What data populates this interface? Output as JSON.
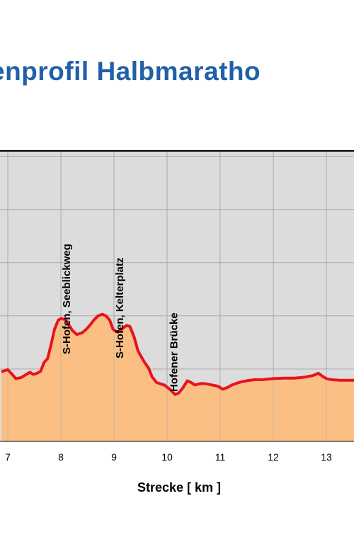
{
  "title": "enprofil Halbmaratho",
  "chart_data": {
    "type": "area",
    "title": "enprofil Halbmaratho",
    "xlabel": "Strecke [ km ]",
    "ylabel": "",
    "x_ticks": [
      7,
      8,
      9,
      10,
      11,
      12,
      13
    ],
    "xlim": [
      6.88,
      13.55
    ],
    "ylim": [
      0,
      5.1
    ],
    "grid": true,
    "colors": {
      "fill": "#fbbf84",
      "line": "#e8131f",
      "plot_bg": "#dcdcdc",
      "grid": "#aaaaaa",
      "title": "#2160a8"
    },
    "series": [
      {
        "x": [
          6.88,
          7.0,
          7.1,
          7.15,
          7.25,
          7.35,
          7.42,
          7.48,
          7.55,
          7.62,
          7.68,
          7.75,
          7.82,
          7.88,
          7.95,
          8.0,
          8.08,
          8.15,
          8.22,
          8.3,
          8.4,
          8.48,
          8.55,
          8.62,
          8.7,
          8.78,
          8.85,
          8.92,
          8.98,
          9.05,
          9.12,
          9.18,
          9.24,
          9.3,
          9.38,
          9.45,
          9.52,
          9.58,
          9.65,
          9.72,
          9.8,
          9.88,
          9.95,
          10.05,
          10.15,
          10.22,
          10.3,
          10.38,
          10.45,
          10.52,
          10.6,
          10.67,
          10.75,
          10.85,
          10.95,
          11.05,
          11.15,
          11.22,
          11.3,
          11.4,
          11.5,
          11.65,
          11.8,
          12.0,
          12.2,
          12.4,
          12.6,
          12.75,
          12.85,
          12.95,
          13.0,
          13.1,
          13.25,
          13.4,
          13.55
        ],
        "y": [
          0.95,
          0.99,
          0.88,
          0.82,
          0.84,
          0.9,
          0.94,
          0.9,
          0.92,
          0.96,
          1.12,
          1.2,
          1.48,
          1.75,
          1.92,
          1.95,
          1.93,
          1.83,
          1.72,
          1.65,
          1.68,
          1.75,
          1.83,
          1.92,
          2.0,
          2.03,
          2.0,
          1.92,
          1.75,
          1.7,
          1.72,
          1.78,
          1.82,
          1.8,
          1.6,
          1.35,
          1.22,
          1.12,
          1.02,
          0.85,
          0.75,
          0.72,
          0.7,
          0.62,
          0.52,
          0.55,
          0.65,
          0.78,
          0.75,
          0.7,
          0.72,
          0.73,
          0.72,
          0.7,
          0.68,
          0.62,
          0.66,
          0.7,
          0.73,
          0.76,
          0.78,
          0.8,
          0.8,
          0.82,
          0.83,
          0.83,
          0.85,
          0.88,
          0.92,
          0.85,
          0.82,
          0.8,
          0.79,
          0.79,
          0.79
        ]
      }
    ],
    "annotations": [
      {
        "text": "S-Hofen, Seeblickweg",
        "x": 8.2
      },
      {
        "text": "S-Hofen, Kelterplatz",
        "x": 9.2
      },
      {
        "text": "Hofener Brücke",
        "x": 10.22
      }
    ]
  }
}
